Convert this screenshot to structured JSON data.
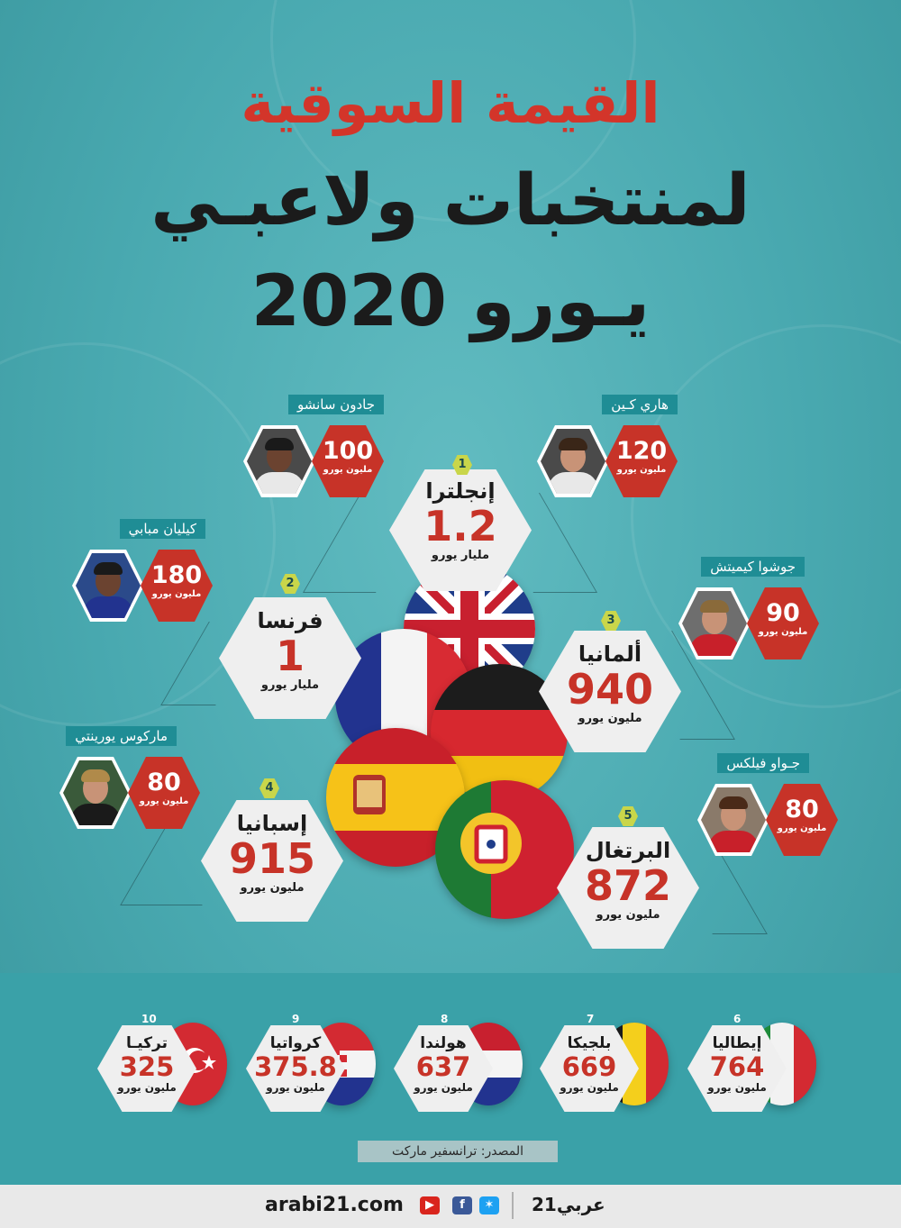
{
  "title": {
    "line1": "القيمة السوقية",
    "line2": "لمنتخبات ولاعبـي",
    "line3": "يـورو 2020"
  },
  "top_countries": [
    {
      "rank": "1",
      "name": "إنجلترا",
      "value": "1.2",
      "unit": "مليار يورو",
      "flag": "united-kingdom"
    },
    {
      "rank": "2",
      "name": "فرنسا",
      "value": "1",
      "unit": "مليار يورو",
      "flag": "france"
    },
    {
      "rank": "3",
      "name": "ألمانيا",
      "value": "940",
      "unit": "مليون يورو",
      "flag": "germany"
    },
    {
      "rank": "4",
      "name": "إسبانيا",
      "value": "915",
      "unit": "مليون يورو",
      "flag": "spain"
    },
    {
      "rank": "5",
      "name": "البرتغال",
      "value": "872",
      "unit": "مليون يورو",
      "flag": "portugal"
    }
  ],
  "players": [
    {
      "name": "هاري كـين",
      "value": "120",
      "unit": "مليون يورو"
    },
    {
      "name": "جادون سانشو",
      "value": "100",
      "unit": "مليون يورو"
    },
    {
      "name": "كيليان مبابي",
      "value": "180",
      "unit": "مليون يورو"
    },
    {
      "name": "جوشوا كيميتش",
      "value": "90",
      "unit": "مليون يورو"
    },
    {
      "name": "ماركوس يورينتي",
      "value": "80",
      "unit": "مليون يورو"
    },
    {
      "name": "جـواو فيلكس",
      "value": "80",
      "unit": "مليون يورو"
    }
  ],
  "other_countries": [
    {
      "rank": "6",
      "name": "إيطاليا",
      "value": "764",
      "unit": "مليون يورو",
      "flag": "italy"
    },
    {
      "rank": "7",
      "name": "بلجيكا",
      "value": "669",
      "unit": "مليون يورو",
      "flag": "belgium"
    },
    {
      "rank": "8",
      "name": "هولندا",
      "value": "637",
      "unit": "مليون يورو",
      "flag": "netherlands"
    },
    {
      "rank": "9",
      "name": "كرواتيا",
      "value": "375.8",
      "unit": "مليون يورو",
      "flag": "croatia"
    },
    {
      "rank": "10",
      "name": "تركيـا",
      "value": "325",
      "unit": "مليون يورو",
      "flag": "turkey"
    }
  ],
  "source": "المصدر: ترانسفير ماركت",
  "footer": {
    "site": "arabi21.com",
    "brand": "عربي21",
    "icons": [
      "youtube-icon",
      "facebook-icon",
      "twitter-icon"
    ]
  },
  "colors": {
    "background": "#49a9b0",
    "accent_red": "#c73328",
    "hex_light": "#efefef",
    "rank_badge": "#c9d64a",
    "name_tag": "#1f8d95"
  }
}
